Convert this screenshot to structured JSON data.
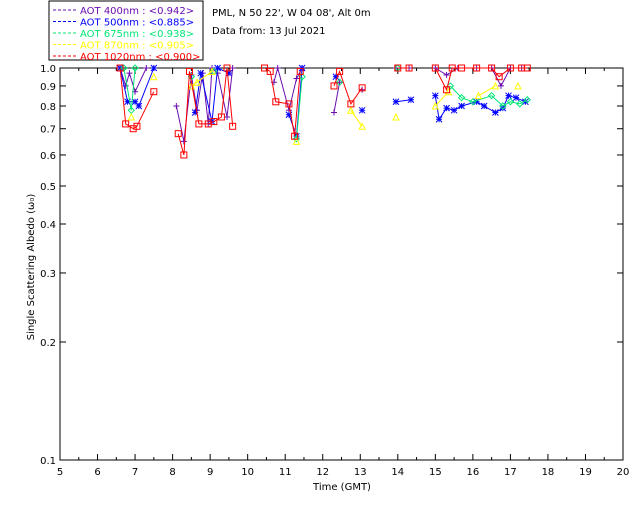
{
  "chart_data": {
    "type": "scatter",
    "title": "",
    "xlabel": "Time (GMT)",
    "ylabel": "Single Scattering Albedo (ω₀)",
    "xlim": [
      5,
      20
    ],
    "ylim": [
      0.1,
      1.0
    ],
    "y_scale": "log",
    "x_ticks": [
      "5",
      "6",
      "7",
      "8",
      "9",
      "10",
      "11",
      "12",
      "13",
      "14",
      "15",
      "16",
      "17",
      "18",
      "19",
      "20"
    ],
    "y_ticks": [
      "0.1",
      "0.2",
      "0.3",
      "0.4",
      "0.5",
      "0.6",
      "0.7",
      "0.8",
      "0.9",
      "1.0"
    ],
    "info_lines": [
      "PML, N 50 22', W 04 08', Alt 0m",
      "Data from: 13 Jul 2021"
    ],
    "legend": [
      {
        "label": "AOT  400nm : <0.942>",
        "color": "#6a0dad",
        "marker": "plus"
      },
      {
        "label": "AOT  500nm : <0.885>",
        "color": "#0000ff",
        "marker": "star"
      },
      {
        "label": "AOT  675nm : <0.938>",
        "color": "#00e676",
        "marker": "diamond"
      },
      {
        "label": "AOT  870nm : <0.905>",
        "color": "#ffff00",
        "marker": "triangle"
      },
      {
        "label": "AOT 1020nm : <0.900>",
        "color": "#ff0000",
        "marker": "square"
      }
    ],
    "series": [
      {
        "name": "AOT 400nm",
        "color": "#6a0dad",
        "marker": "plus",
        "x": [
          6.6,
          6.75,
          6.85,
          7.0,
          7.3,
          8.1,
          8.3,
          8.5,
          8.65,
          8.8,
          8.95,
          9.05,
          9.2,
          9.45,
          9.6,
          10.7,
          10.8,
          11.1,
          11.3,
          11.45,
          12.3,
          12.45,
          13.05,
          13.95,
          14.3,
          15.0,
          15.3,
          15.6,
          16.1,
          16.5,
          16.75,
          17.0,
          17.3
        ],
        "y": [
          1.0,
          0.9,
          0.97,
          0.87,
          1.0,
          0.8,
          0.65,
          0.96,
          0.78,
          0.97,
          0.72,
          1.0,
          0.97,
          0.75,
          1.0,
          0.92,
          1.0,
          0.78,
          0.94,
          1.0,
          0.77,
          0.92,
          0.88,
          1.0,
          1.0,
          1.0,
          0.96,
          1.0,
          1.0,
          1.0,
          0.9,
          1.0,
          1.0
        ]
      },
      {
        "name": "AOT 500nm",
        "color": "#0000ff",
        "marker": "star",
        "x": [
          6.6,
          6.8,
          7.0,
          7.1,
          7.5,
          8.6,
          8.75,
          9.05,
          9.2,
          9.5,
          11.1,
          11.3,
          11.45,
          12.35,
          13.05,
          13.95,
          14.35,
          15.0,
          15.1,
          15.3,
          15.5,
          15.7,
          16.1,
          16.3,
          16.6,
          16.8,
          16.95,
          17.15,
          17.4
        ],
        "y": [
          1.0,
          0.82,
          0.82,
          0.8,
          1.0,
          0.77,
          0.97,
          0.73,
          1.0,
          0.97,
          0.76,
          0.67,
          1.0,
          0.95,
          0.78,
          0.82,
          0.83,
          0.85,
          0.74,
          0.79,
          0.78,
          0.8,
          0.82,
          0.8,
          0.77,
          0.79,
          0.85,
          0.84,
          0.82
        ]
      },
      {
        "name": "AOT 675nm",
        "color": "#00e676",
        "marker": "diamond",
        "x": [
          6.7,
          6.9,
          7.0,
          8.5,
          9.1,
          11.3,
          11.45,
          12.45,
          14.0,
          15.4,
          15.7,
          16.0,
          16.5,
          16.8,
          17.0,
          17.25,
          17.45
        ],
        "y": [
          1.0,
          0.78,
          1.0,
          0.95,
          0.98,
          0.66,
          0.95,
          0.92,
          1.0,
          0.9,
          0.84,
          0.82,
          0.85,
          0.8,
          0.82,
          0.81,
          0.83
        ]
      },
      {
        "name": "AOT 870nm",
        "color": "#ffff00",
        "marker": "triangle",
        "x": [
          6.9,
          7.5,
          8.5,
          8.65,
          9.05,
          11.3,
          12.75,
          13.05,
          13.95,
          15.0,
          15.35,
          16.15,
          16.6,
          17.2
        ],
        "y": [
          0.75,
          0.95,
          0.9,
          0.92,
          0.98,
          0.65,
          0.78,
          0.71,
          0.75,
          0.8,
          0.87,
          0.85,
          0.9,
          0.9
        ]
      },
      {
        "name": "AOT 1020nm",
        "color": "#ff0000",
        "marker": "square",
        "x": [
          6.6,
          6.75,
          6.95,
          7.05,
          7.5,
          8.15,
          8.3,
          8.45,
          8.7,
          8.95,
          9.1,
          9.3,
          9.45,
          9.6,
          10.45,
          10.6,
          10.75,
          11.1,
          11.25,
          11.4,
          12.3,
          12.45,
          12.75,
          13.05,
          14.0,
          14.3,
          15.0,
          15.3,
          15.45,
          15.7,
          16.1,
          16.5,
          16.7,
          17.0,
          17.3,
          17.45
        ],
        "y": [
          1.0,
          0.72,
          0.7,
          0.71,
          0.87,
          0.68,
          0.6,
          0.98,
          0.72,
          0.72,
          0.73,
          0.75,
          1.0,
          0.71,
          1.0,
          0.98,
          0.82,
          0.81,
          0.67,
          0.98,
          0.9,
          0.98,
          0.81,
          0.89,
          1.0,
          1.0,
          1.0,
          0.88,
          1.0,
          1.0,
          1.0,
          1.0,
          0.95,
          1.0,
          1.0,
          1.0
        ]
      }
    ]
  }
}
